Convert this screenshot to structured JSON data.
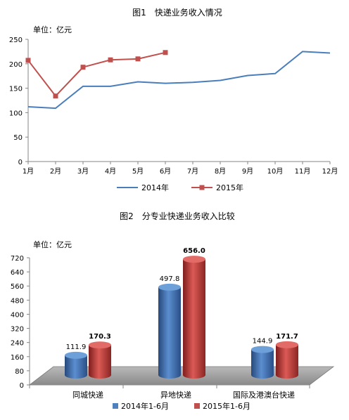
{
  "chart_data": [
    {
      "type": "line",
      "title": "图1　快递业务收入情况",
      "unit_label": "单位：亿元",
      "categories": [
        "1月",
        "2月",
        "3月",
        "4月",
        "5月",
        "6月",
        "7月",
        "8月",
        "9月",
        "10月",
        "11月",
        "12月"
      ],
      "ylim": [
        0,
        250
      ],
      "yticks": [
        "0",
        "50",
        "100",
        "150",
        "200",
        "250"
      ],
      "grid": false,
      "legend_position": "bottom",
      "series": [
        {
          "name": "2014年",
          "color": "#4A7EBB",
          "marker": "none",
          "values": [
            112,
            109,
            154,
            154,
            163,
            160,
            162,
            166,
            176,
            180,
            225,
            222
          ]
        },
        {
          "name": "2015年",
          "color": "#C0504D",
          "marker": "square",
          "values": [
            207,
            134,
            193,
            208,
            210,
            223,
            null,
            null,
            null,
            null,
            null,
            null
          ]
        }
      ]
    },
    {
      "type": "bar",
      "style": "3d-cylinder",
      "title": "图2　分专业快递业务收入比较",
      "unit_label": "单位：亿元",
      "categories": [
        "同城快递",
        "异地快递",
        "国际及港澳台快递"
      ],
      "ylim": [
        0,
        720
      ],
      "yticks": [
        "0",
        "80",
        "160",
        "240",
        "320",
        "400",
        "480",
        "560",
        "640",
        "720"
      ],
      "grid": false,
      "legend_position": "bottom",
      "series": [
        {
          "name": "2014年1-6月",
          "color": "#4F81BD",
          "values": [
            111.9,
            497.8,
            144.9
          ],
          "labels": [
            "111.9",
            "497.8",
            "144.9"
          ]
        },
        {
          "name": "2015年1-6月",
          "color": "#C0504D",
          "values": [
            170.3,
            656.0,
            171.7
          ],
          "labels": [
            "170.3",
            "656.0",
            "171.7"
          ]
        }
      ]
    }
  ]
}
